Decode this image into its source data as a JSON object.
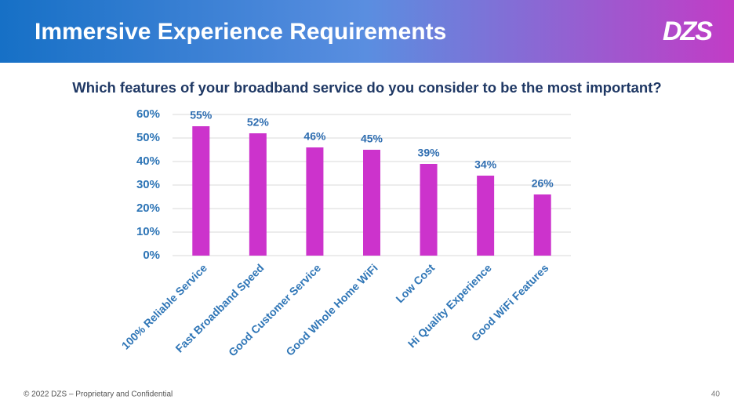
{
  "header": {
    "title": "Immersive Experience Requirements",
    "logo": "DZS"
  },
  "chart_data": {
    "type": "bar",
    "title": "Which features of your broadband service do you consider to be the most important?",
    "categories": [
      "100% Reliable Service",
      "Fast Broadband Speed",
      "Good Customer Service",
      "Good Whole Home WiFi",
      "Low Cost",
      "Hi Quality Experience",
      "Good WiFi Features"
    ],
    "values": [
      55,
      52,
      46,
      45,
      39,
      34,
      26
    ],
    "value_labels": [
      "55%",
      "52%",
      "46%",
      "45%",
      "39%",
      "34%",
      "26%"
    ],
    "color": "#cc33cc",
    "ylim": [
      0,
      60
    ],
    "yticks": [
      {
        "value": 0,
        "label": "0%"
      },
      {
        "value": 10,
        "label": "10%"
      },
      {
        "value": 20,
        "label": "20%"
      },
      {
        "value": 30,
        "label": "30%"
      },
      {
        "value": 40,
        "label": "40%"
      },
      {
        "value": 50,
        "label": "50%"
      },
      {
        "value": 60,
        "label": "60%"
      }
    ],
    "grid": true
  },
  "footer": {
    "copyright": "© 2022 DZS – Proprietary and Confidential",
    "page": "40"
  }
}
